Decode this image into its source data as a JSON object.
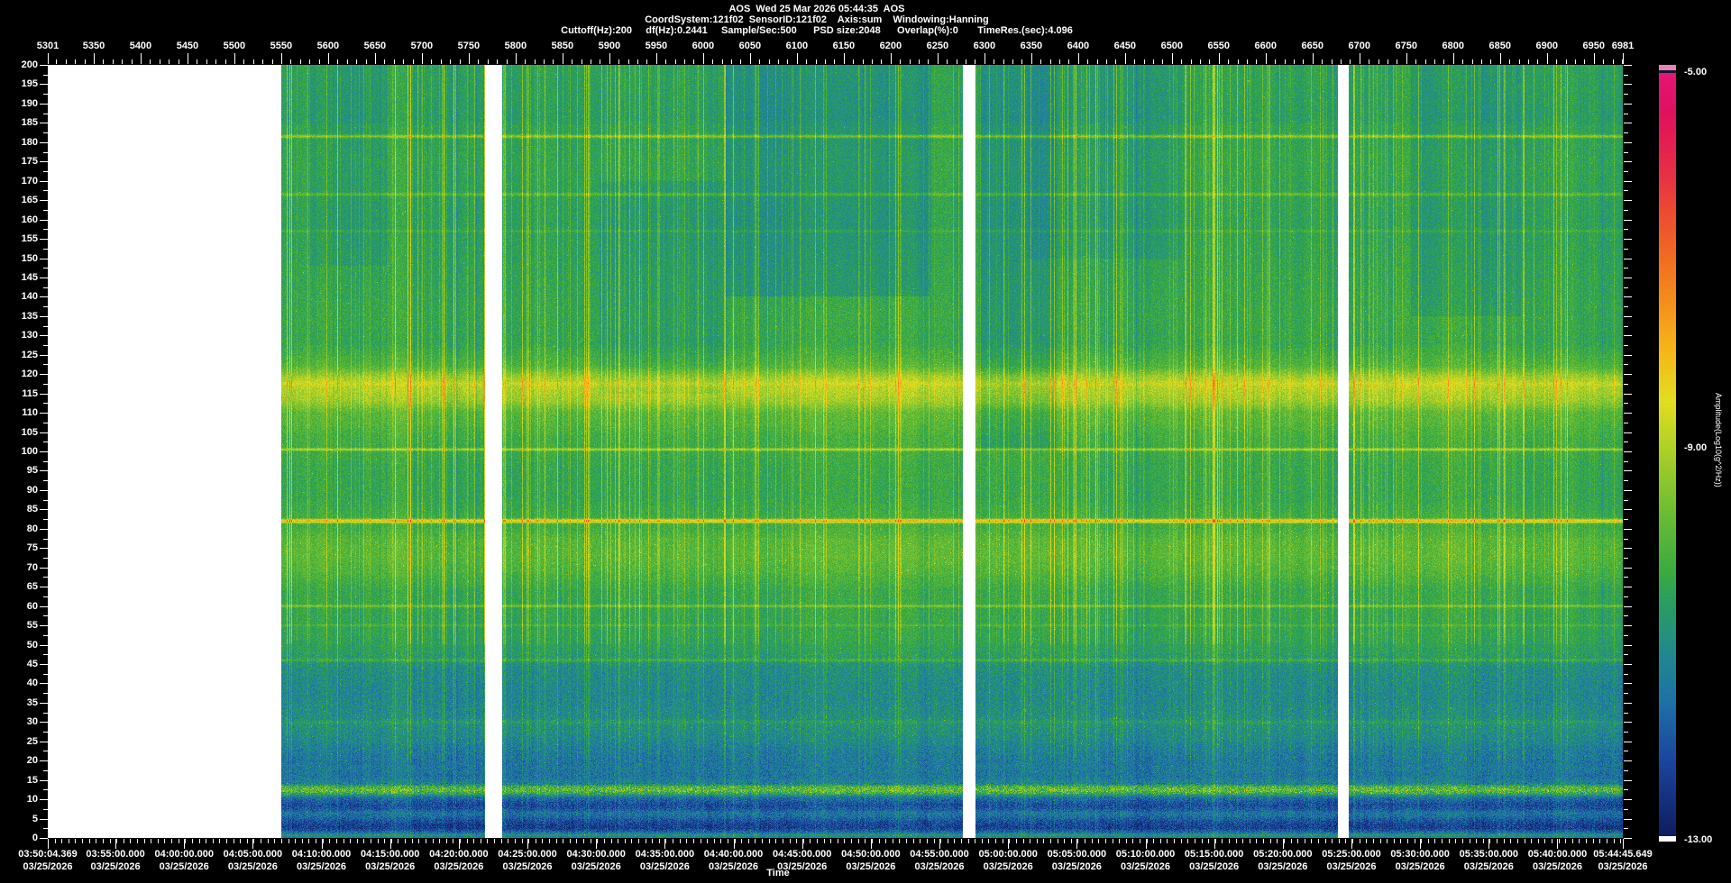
{
  "app": {
    "background": "#000000",
    "text_color": "#ffffff"
  },
  "header": {
    "line1": "AOS  Wed 25 Mar 2026 05:44:35  AOS",
    "line2": "CoordSystem:121f02  SensorID:121f02    Axis:sum    Windowing:Hanning",
    "line3": "Cuttoff(Hz):200     df(Hz):0.2441     Sample/Sec:500      PSD size:2048      Overlap(%):0       TimeRes.(sec):4.096"
  },
  "chart_data": {
    "type": "heatmap",
    "title": "AOS  Wed 25 Mar 2026 05:44:35  AOS",
    "top_axis": {
      "min": 5301,
      "max": 6981,
      "minor_step": 10,
      "tick_labels": [
        "5301",
        "5350",
        "5400",
        "5450",
        "5500",
        "5550",
        "5600",
        "5650",
        "5700",
        "5750",
        "5800",
        "5850",
        "5900",
        "5950",
        "6000",
        "6050",
        "6100",
        "6150",
        "6200",
        "6250",
        "6300",
        "6350",
        "6400",
        "6450",
        "6500",
        "6550",
        "6600",
        "6650",
        "6700",
        "6750",
        "6800",
        "6850",
        "6900",
        "6950",
        "6981"
      ]
    },
    "freq_axis": {
      "min": 0,
      "max": 200,
      "major_step": 5,
      "tick_labels": [
        "200",
        "195",
        "190",
        "185",
        "180",
        "175",
        "170",
        "165",
        "160",
        "155",
        "150",
        "145",
        "140",
        "135",
        "130",
        "125",
        "120",
        "115",
        "110",
        "105",
        "100",
        "95",
        "90",
        "85",
        "80",
        "75",
        "70",
        "65",
        "60",
        "55",
        "50",
        "45",
        "40",
        "35",
        "30",
        "25",
        "20",
        "15",
        "10",
        "5",
        "0"
      ]
    },
    "time_axis": {
      "label": "Time",
      "start": "03:50:04.369",
      "end": "05:44:45.649",
      "total_seconds": 6881.28,
      "minor_step_sec": 30,
      "ticks": [
        {
          "time": "03:50:04.369",
          "date": "03/25/2026",
          "frac": 0.0
        },
        {
          "time": "03:55:00.000",
          "date": "03/25/2026",
          "frac": 0.04296
        },
        {
          "time": "04:00:00.000",
          "date": "03/25/2026",
          "frac": 0.08656
        },
        {
          "time": "04:05:00.000",
          "date": "03/25/2026",
          "frac": 0.13016
        },
        {
          "time": "04:10:00.000",
          "date": "03/25/2026",
          "frac": 0.17375
        },
        {
          "time": "04:15:00.000",
          "date": "03/25/2026",
          "frac": 0.21735
        },
        {
          "time": "04:20:00.000",
          "date": "03/25/2026",
          "frac": 0.26095
        },
        {
          "time": "04:25:00.000",
          "date": "03/25/2026",
          "frac": 0.30454
        },
        {
          "time": "04:30:00.000",
          "date": "03/25/2026",
          "frac": 0.34814
        },
        {
          "time": "04:35:00.000",
          "date": "03/25/2026",
          "frac": 0.39174
        },
        {
          "time": "04:40:00.000",
          "date": "03/25/2026",
          "frac": 0.43533
        },
        {
          "time": "04:45:00.000",
          "date": "03/25/2026",
          "frac": 0.47893
        },
        {
          "time": "04:50:00.000",
          "date": "03/25/2026",
          "frac": 0.52253
        },
        {
          "time": "04:55:00.000",
          "date": "03/25/2026",
          "frac": 0.56613
        },
        {
          "time": "05:00:00.000",
          "date": "03/25/2026",
          "frac": 0.60972
        },
        {
          "time": "05:05:00.000",
          "date": "03/25/2026",
          "frac": 0.65332
        },
        {
          "time": "05:10:00.000",
          "date": "03/25/2026",
          "frac": 0.69692
        },
        {
          "time": "05:15:00.000",
          "date": "03/25/2026",
          "frac": 0.74051
        },
        {
          "time": "05:20:00.000",
          "date": "03/25/2026",
          "frac": 0.78411
        },
        {
          "time": "05:25:00.000",
          "date": "03/25/2026",
          "frac": 0.82771
        },
        {
          "time": "05:30:00.000",
          "date": "03/25/2026",
          "frac": 0.8713
        },
        {
          "time": "05:35:00.000",
          "date": "03/25/2026",
          "frac": 0.9149
        },
        {
          "time": "05:40:00.000",
          "date": "03/25/2026",
          "frac": 0.9585
        },
        {
          "time": "05:44:45.649",
          "date": "03/25/2026",
          "frac": 1.0
        }
      ]
    },
    "colorbar": {
      "title": "Amplitude(Log10(g^2/Hz))",
      "max": -5.0,
      "min": -13.0,
      "labels": [
        "-5.00",
        "-9.00",
        "-13.00"
      ],
      "top_cap_color": "#ee7fb2",
      "cap_divider_color": "#101830",
      "bottom_cap_color": "#ffffff",
      "stops": [
        {
          "p": 0.0,
          "c": [
            16,
            28,
            96
          ]
        },
        {
          "p": 0.1,
          "c": [
            26,
            70,
            158
          ]
        },
        {
          "p": 0.18,
          "c": [
            30,
            115,
            166
          ]
        },
        {
          "p": 0.25,
          "c": [
            34,
            140,
            135
          ]
        },
        {
          "p": 0.31,
          "c": [
            44,
            158,
            92
          ]
        },
        {
          "p": 0.345,
          "c": [
            58,
            170,
            64
          ]
        },
        {
          "p": 0.42,
          "c": [
            104,
            188,
            52
          ]
        },
        {
          "p": 0.5,
          "c": [
            168,
            206,
            40
          ]
        },
        {
          "p": 0.57,
          "c": [
            226,
            222,
            32
          ]
        },
        {
          "p": 0.64,
          "c": [
            246,
            180,
            25
          ]
        },
        {
          "p": 0.72,
          "c": [
            244,
            130,
            28
          ]
        },
        {
          "p": 0.8,
          "c": [
            238,
            84,
            44
          ]
        },
        {
          "p": 0.88,
          "c": [
            230,
            42,
            72
          ]
        },
        {
          "p": 0.95,
          "c": [
            223,
            16,
            95
          ]
        },
        {
          "p": 1.0,
          "c": [
            227,
            22,
            116
          ]
        }
      ]
    },
    "gaps": [
      [
        0.0,
        0.1483
      ],
      [
        0.2776,
        0.2885
      ],
      [
        0.581,
        0.589
      ],
      [
        0.8191,
        0.826
      ]
    ],
    "gap_color": "#ffffff",
    "spectral_profile": [
      [
        0,
        -11.3
      ],
      [
        0.8,
        -10.9
      ],
      [
        1.5,
        -11.7
      ],
      [
        2.5,
        -12.35
      ],
      [
        3.5,
        -12.3
      ],
      [
        4.5,
        -12.05
      ],
      [
        5.5,
        -11.65
      ],
      [
        6.5,
        -11.5
      ],
      [
        7.5,
        -12.0
      ],
      [
        8.5,
        -12.15
      ],
      [
        9.5,
        -11.9
      ],
      [
        10.5,
        -11.55
      ],
      [
        11.5,
        -10.4
      ],
      [
        12.3,
        -9.75
      ],
      [
        13.2,
        -10.1
      ],
      [
        14,
        -11.2
      ],
      [
        16,
        -11.5
      ],
      [
        18,
        -11.4
      ],
      [
        20,
        -11.45
      ],
      [
        23,
        -11.3
      ],
      [
        26,
        -11.05
      ],
      [
        29,
        -10.9
      ],
      [
        32,
        -11.0
      ],
      [
        36,
        -11.1
      ],
      [
        40,
        -11.05
      ],
      [
        44,
        -10.95
      ],
      [
        46,
        -10.7
      ],
      [
        48,
        -10.55
      ],
      [
        52,
        -10.4
      ],
      [
        58,
        -10.35
      ],
      [
        64,
        -10.3
      ],
      [
        69,
        -9.95
      ],
      [
        73,
        -9.8
      ],
      [
        77,
        -9.85
      ],
      [
        80,
        -10.1
      ],
      [
        84,
        -10.2
      ],
      [
        88,
        -10.35
      ],
      [
        96,
        -10.3
      ],
      [
        104,
        -10.1
      ],
      [
        107,
        -9.9
      ],
      [
        110,
        -9.8
      ],
      [
        113,
        -9.15
      ],
      [
        116,
        -8.9
      ],
      [
        119,
        -9.0
      ],
      [
        122,
        -9.9
      ],
      [
        128,
        -10.35
      ],
      [
        135,
        -10.3
      ],
      [
        150,
        -10.4
      ],
      [
        160,
        -10.45
      ],
      [
        175,
        -10.35
      ],
      [
        184,
        -10.4
      ],
      [
        186,
        -10.55
      ],
      [
        190,
        -10.5
      ],
      [
        200,
        -10.45
      ]
    ],
    "tonal_lines": [
      [
        181.5,
        0.3,
        1.15
      ],
      [
        166.5,
        0.3,
        0.7
      ],
      [
        157.0,
        0.25,
        0.35
      ],
      [
        117.5,
        0.5,
        0.3
      ],
      [
        100.5,
        0.25,
        1.3
      ],
      [
        82.0,
        0.35,
        2.3
      ],
      [
        60.0,
        0.25,
        0.85
      ],
      [
        55.0,
        0.22,
        0.4
      ],
      [
        46.0,
        0.3,
        0.55
      ],
      [
        30.0,
        0.35,
        0.3
      ]
    ],
    "dark_patches": [
      [
        0.43,
        0.56,
        140,
        200,
        -0.42
      ],
      [
        0.592,
        0.64,
        100,
        200,
        -0.45
      ],
      [
        0.35,
        0.43,
        115,
        170,
        -0.22
      ],
      [
        0.865,
        0.935,
        135,
        200,
        -0.28
      ],
      [
        0.165,
        0.215,
        148,
        200,
        -0.18
      ],
      [
        0.62,
        0.72,
        150,
        200,
        -0.2
      ]
    ],
    "streak_zones": [
      [
        0.148,
        0.28,
        1.5
      ],
      [
        0.29,
        0.45,
        1.2
      ],
      [
        0.6,
        0.78,
        1.2
      ],
      [
        0.826,
        1.0,
        1.25
      ]
    ],
    "noise_seed": 1234567
  }
}
